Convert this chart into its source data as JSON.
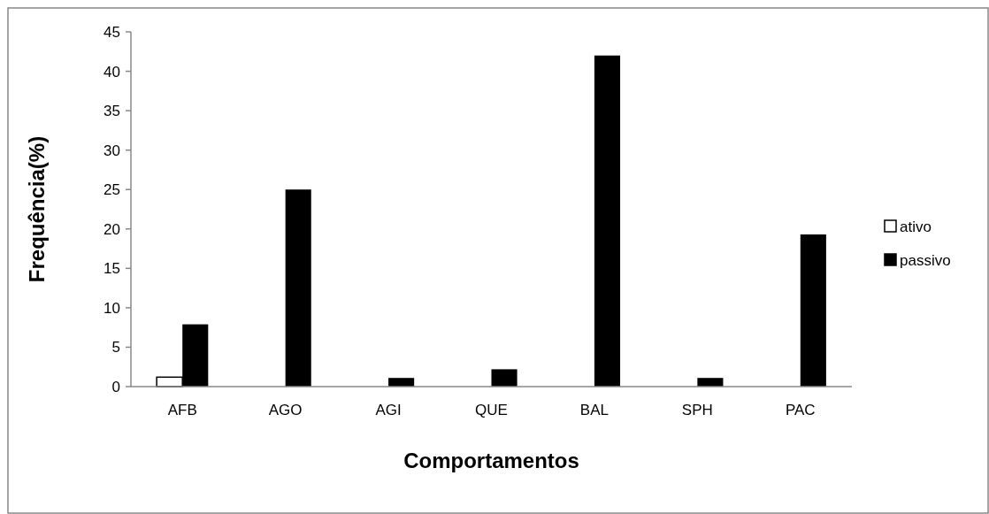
{
  "chart_data": {
    "type": "bar",
    "xlabel": "Comportamentos",
    "ylabel": "Frequência(%)",
    "categories": [
      "AFB",
      "AGO",
      "AGI",
      "QUE",
      "BAL",
      "SPH",
      "PAC"
    ],
    "series": [
      {
        "name": "ativo",
        "color": "#ffffff",
        "values": [
          1.2,
          0,
          0,
          0,
          0,
          0,
          0
        ]
      },
      {
        "name": "passivo",
        "color": "#000000",
        "values": [
          7.9,
          25,
          1.1,
          2.2,
          42,
          1.1,
          19.3
        ]
      }
    ],
    "ylim": [
      0,
      45
    ],
    "yticks": [
      0,
      5,
      10,
      15,
      20,
      25,
      30,
      35,
      40,
      45
    ],
    "grid": false,
    "legend": "right"
  }
}
